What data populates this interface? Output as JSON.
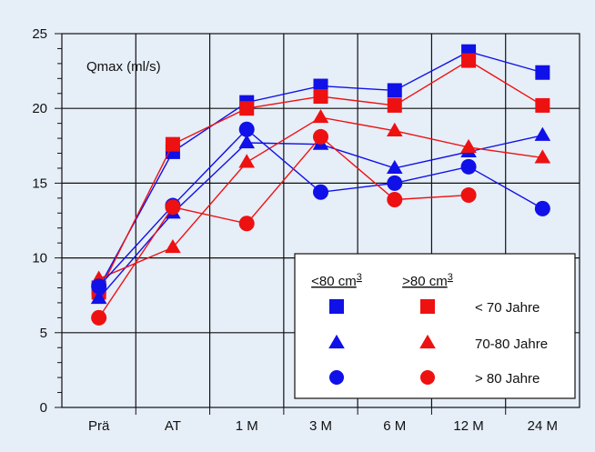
{
  "chart_data": {
    "type": "line",
    "annotation": "Qmax  (ml/s)",
    "title": "",
    "xlabel": "",
    "ylabel": "",
    "categories": [
      "Prä",
      "AT",
      "1 M",
      "3 M",
      "6 M",
      "12 M",
      "24 M"
    ],
    "ylim": [
      0,
      25
    ],
    "yticks": [
      "0",
      "5",
      "10",
      "15",
      "20",
      "25"
    ],
    "grid": true,
    "series": [
      {
        "key": "b_sq",
        "group": "<80 cm3",
        "age": "< 70 Jahre",
        "color": "#1010e8",
        "marker": "square",
        "values": [
          8.0,
          17.1,
          20.4,
          21.5,
          21.2,
          23.8,
          22.4
        ]
      },
      {
        "key": "r_sq",
        "group": ">80 cm3",
        "age": "< 70 Jahre",
        "color": "#ee1111",
        "marker": "square",
        "values": [
          7.7,
          17.6,
          20.0,
          20.8,
          20.2,
          23.2,
          20.2
        ]
      },
      {
        "key": "b_tri",
        "group": "<80 cm3",
        "age": "70-80 Jahre",
        "color": "#1010e8",
        "marker": "triangle",
        "values": [
          7.3,
          13.0,
          17.7,
          17.6,
          16.0,
          17.1,
          18.2
        ]
      },
      {
        "key": "r_tri",
        "group": ">80 cm3",
        "age": "70-80 Jahre",
        "color": "#ee1111",
        "marker": "triangle",
        "values": [
          8.6,
          10.7,
          16.4,
          19.4,
          18.5,
          17.4,
          16.7
        ]
      },
      {
        "key": "b_circ",
        "group": "<80 cm3",
        "age": "> 80 Jahre",
        "color": "#1010e8",
        "marker": "circle",
        "values": [
          8.1,
          13.5,
          18.6,
          14.4,
          15.0,
          16.1,
          13.3
        ]
      },
      {
        "key": "r_circ",
        "group": ">80 cm3",
        "age": "> 80 Jahre",
        "color": "#ee1111",
        "marker": "circle",
        "values": [
          6.0,
          13.4,
          12.3,
          18.1,
          13.9,
          14.2,
          null
        ]
      }
    ],
    "legend": {
      "placement": "bottom-right",
      "col1": "<80 cm",
      "col2": ">80 cm",
      "superscript": "3",
      "rows": [
        "< 70 Jahre",
        "70-80 Jahre",
        "> 80 Jahre"
      ]
    }
  }
}
